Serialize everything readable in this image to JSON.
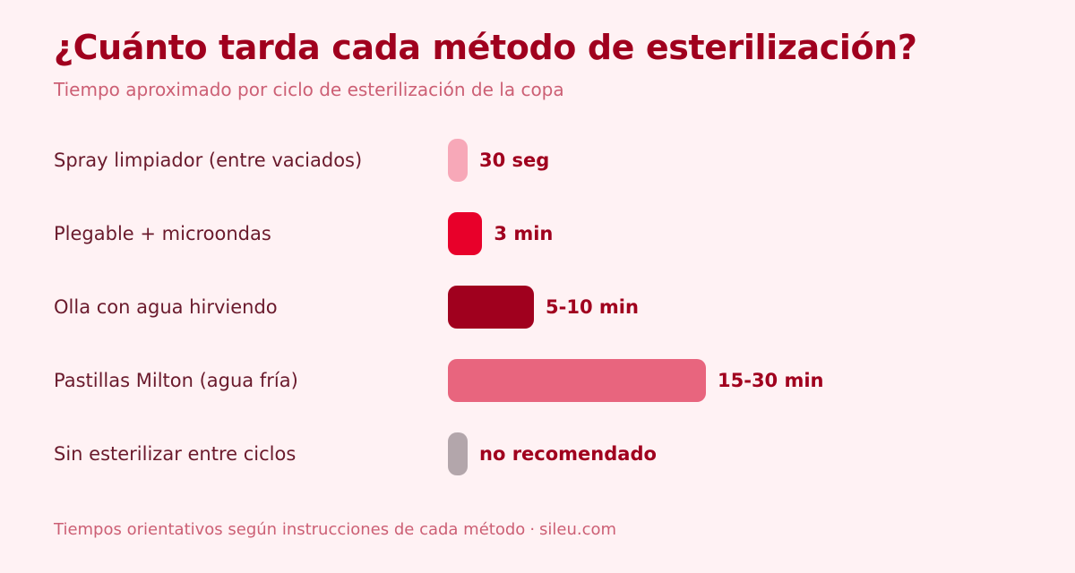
{
  "title": "¿Cuánto tarda cada método de esterilización?",
  "subtitle": "Tiempo aproximado por ciclo de esterilización de la copa",
  "footer": {
    "note": "Tiempos orientativos según instrucciones de cada método",
    "separator": "·",
    "source": "sileu.com"
  },
  "chart_data": {
    "type": "bar",
    "orientation": "horizontal",
    "title": "¿Cuánto tarda cada método de esterilización?",
    "subtitle": "Tiempo aproximado por ciclo de esterilización de la copa",
    "xlabel": "",
    "ylabel": "",
    "grid": false,
    "categories": [
      "Spray limpiador (entre vaciados)",
      "Plegable + microondas",
      "Olla con agua hirviendo",
      "Pastillas Milton (agua fría)",
      "Sin esterilizar entre ciclos"
    ],
    "value_labels": [
      "30 seg",
      "3 min",
      "5-10 min",
      "15-30 min",
      "no recomendado"
    ],
    "values": [
      0.5,
      3,
      7.5,
      22.5,
      0
    ],
    "colors": [
      "#f7a8b8",
      "#e8002a",
      "#a0001e",
      "#e8657e",
      "#b3a6ab"
    ]
  }
}
